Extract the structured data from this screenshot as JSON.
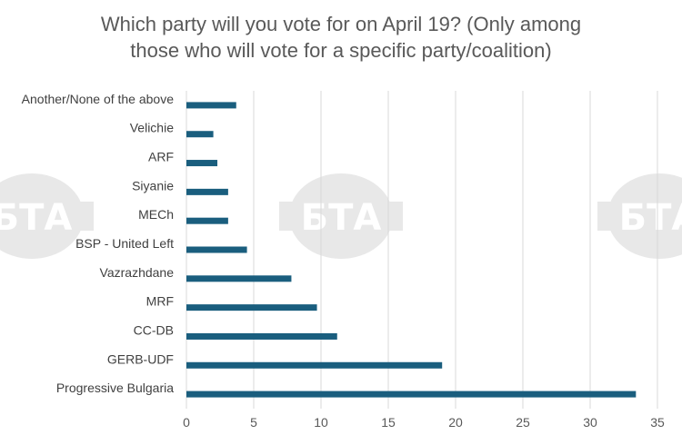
{
  "chart_data": {
    "type": "bar",
    "orientation": "horizontal",
    "title_lines": [
      "Which party will you vote for on April 19? (Only among",
      "those who will vote for a specific party/coalition)"
    ],
    "categories": [
      "Another/None of the above",
      "Velichie",
      "ARF",
      "Siyanie",
      "MECh",
      "BSP - United Left",
      "Vazrazhdane",
      "MRF",
      "CC-DB",
      "GERB-UDF",
      "Progressive Bulgaria"
    ],
    "values": [
      3.7,
      2.0,
      2.3,
      3.1,
      3.1,
      4.5,
      7.8,
      9.7,
      11.2,
      19.0,
      33.4
    ],
    "xlim": [
      0,
      35
    ],
    "xticks": [
      0,
      5,
      10,
      15,
      20,
      25,
      30,
      35
    ],
    "grid": true,
    "bar_color": "#1a5e7e",
    "gridline_color": "#d9d9d9"
  },
  "watermark": {
    "text": "БТА",
    "icon": "bta-logo-watermark",
    "color": "#e8e8e8"
  }
}
